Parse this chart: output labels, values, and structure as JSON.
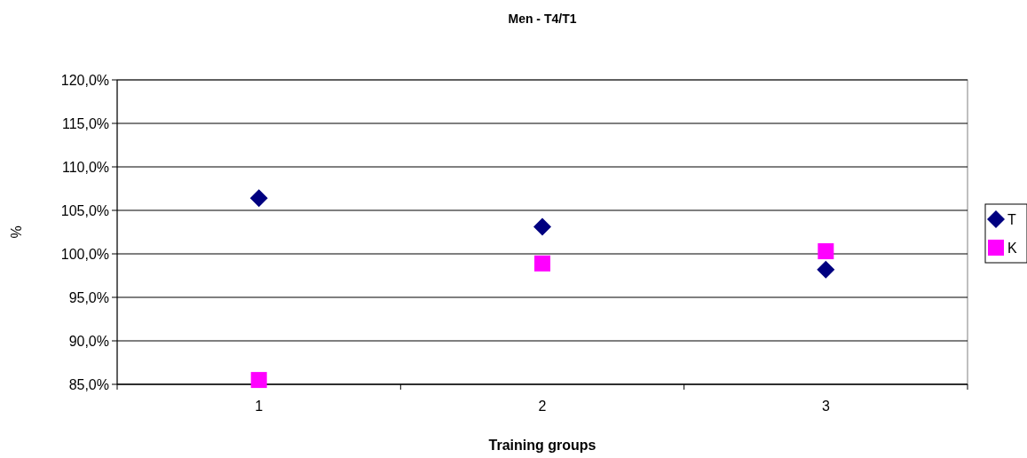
{
  "chart_data": {
    "type": "scatter",
    "title": "Men - T4/T1",
    "xlabel": "Training groups",
    "ylabel": "%",
    "categories": [
      "1",
      "2",
      "3"
    ],
    "series": [
      {
        "name": "T",
        "color": "#000080",
        "marker": "diamond",
        "values": [
          106.4,
          103.1,
          98.2
        ]
      },
      {
        "name": "K",
        "color": "#ff00ff",
        "marker": "square",
        "values": [
          85.5,
          98.9,
          100.3
        ]
      }
    ],
    "ylim": [
      85,
      120
    ],
    "yticks": [
      {
        "value": 85,
        "label": "85,0%"
      },
      {
        "value": 90,
        "label": "90,0%"
      },
      {
        "value": 95,
        "label": "95,0%"
      },
      {
        "value": 100,
        "label": "100,0%"
      },
      {
        "value": 105,
        "label": "105,0%"
      },
      {
        "value": 110,
        "label": "110,0%"
      },
      {
        "value": 115,
        "label": "115,0%"
      },
      {
        "value": 120,
        "label": "120,0%"
      }
    ],
    "grid": "y",
    "legend": "right"
  }
}
